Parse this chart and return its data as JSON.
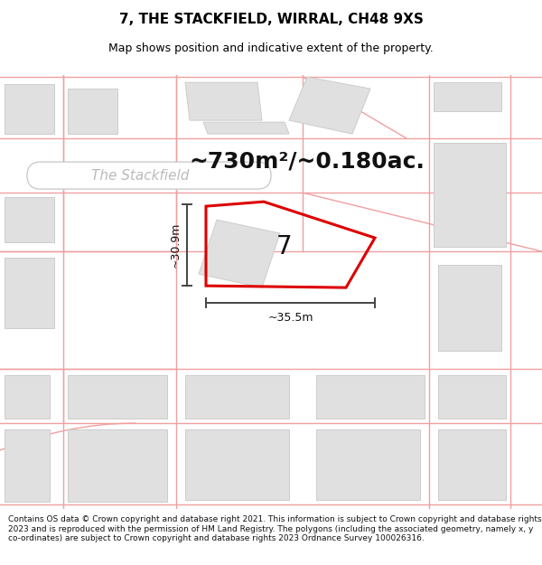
{
  "title": "7, THE STACKFIELD, WIRRAL, CH48 9XS",
  "subtitle": "Map shows position and indicative extent of the property.",
  "area_text": "~730m²/~0.180ac.",
  "label_7": "7",
  "dim_height": "~30.9m",
  "dim_width": "~35.5m",
  "street_label": "The Stackfield",
  "footer": "Contains OS data © Crown copyright and database right 2021. This information is subject to Crown copyright and database rights 2023 and is reproduced with the permission of HM Land Registry. The polygons (including the associated geometry, namely x, y co-ordinates) are subject to Crown copyright and database rights 2023 Ordnance Survey 100026316.",
  "bg_color": "#ffffff",
  "map_bg": "#ffffff",
  "plot_outline_color": "#dd0000",
  "road_color": "#f0a0a0",
  "building_fill": "#e0e0e0",
  "building_edge": "#cccccc",
  "figsize": [
    6.0,
    6.25
  ],
  "dpi": 100,
  "title_fontsize": 11,
  "subtitle_fontsize": 9,
  "area_fontsize": 18,
  "label_fontsize": 20,
  "dim_fontsize": 9,
  "footer_fontsize": 6.5,
  "street_fontsize": 11
}
